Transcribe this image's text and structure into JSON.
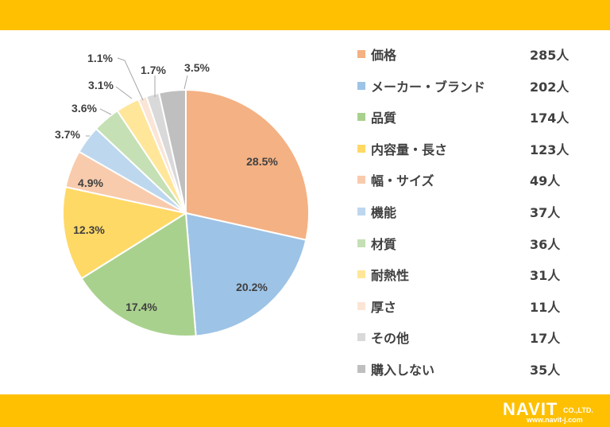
{
  "chart_data": {
    "type": "pie",
    "slices": [
      {
        "label": "価格",
        "count": "285人",
        "percent": 28.5,
        "pct_label": "28.5%",
        "color": "#f4b183"
      },
      {
        "label": "メーカー・ブランド",
        "count": "202人",
        "percent": 20.2,
        "pct_label": "20.2%",
        "color": "#9dc3e6"
      },
      {
        "label": "品質",
        "count": "174人",
        "percent": 17.4,
        "pct_label": "17.4%",
        "color": "#a9d18e"
      },
      {
        "label": "内容量・長さ",
        "count": "123人",
        "percent": 12.3,
        "pct_label": "12.3%",
        "color": "#ffd966"
      },
      {
        "label": "幅・サイズ",
        "count": "49人",
        "percent": 4.9,
        "pct_label": "4.9%",
        "color": "#f8cbad"
      },
      {
        "label": "機能",
        "count": "37人",
        "percent": 3.7,
        "pct_label": "3.7%",
        "color": "#bdd7ee"
      },
      {
        "label": "材質",
        "count": "36人",
        "percent": 3.6,
        "pct_label": "3.6%",
        "color": "#c5e0b4"
      },
      {
        "label": "耐熱性",
        "count": "31人",
        "percent": 3.1,
        "pct_label": "3.1%",
        "color": "#ffe699"
      },
      {
        "label": "厚さ",
        "count": "11人",
        "percent": 1.1,
        "pct_label": "1.1%",
        "color": "#fbe5d6"
      },
      {
        "label": "その他",
        "count": "17人",
        "percent": 1.7,
        "pct_label": "1.7%",
        "color": "#d9d9d9"
      },
      {
        "label": "購入しない",
        "count": "35人",
        "percent": 3.5,
        "pct_label": "3.5%",
        "color": "#bfbfbf"
      }
    ],
    "legend_position": "right",
    "start_angle": "12 o'clock, clockwise"
  },
  "brand": {
    "name": "NAVIT",
    "suffix": "CO.,LTD.",
    "url": "www.navit-j.com"
  },
  "colors": {
    "accent_band": "#fec000",
    "text": "#404040"
  }
}
